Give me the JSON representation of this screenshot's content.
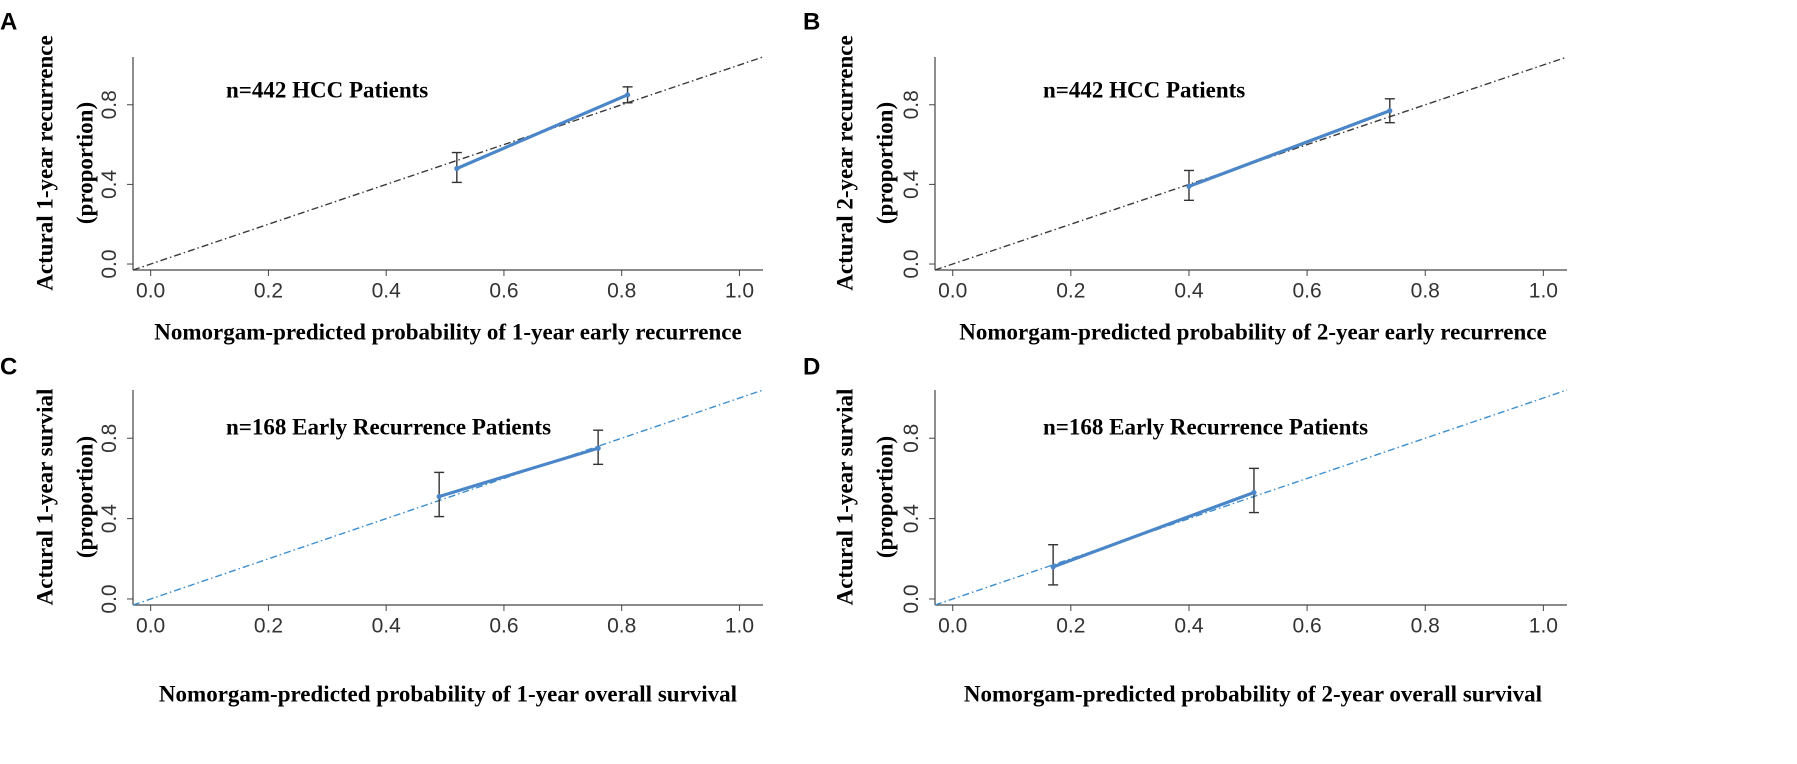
{
  "chart_data": [
    {
      "panel": "A",
      "type": "line",
      "annotation": "n=442 HCC Patients",
      "xlabel": "Nomorgam-predicted probability of 1-year early recurrence",
      "ylabel": [
        "Actural 1-year recurrence",
        "(proportion)"
      ],
      "xticks": [
        "0.0",
        "0.2",
        "0.4",
        "0.6",
        "0.8",
        "1.0"
      ],
      "yticks": [
        "0.0",
        "0.4",
        "0.8"
      ],
      "xlim": [
        -0.03,
        1.04
      ],
      "ylim": [
        -0.03,
        1.04
      ],
      "reference_color": "#3a3a3a",
      "series_color": "#4a86c8",
      "points": [
        {
          "x": 0.52,
          "y": 0.48,
          "lo": 0.41,
          "hi": 0.56
        },
        {
          "x": 0.81,
          "y": 0.85,
          "lo": 0.81,
          "hi": 0.89
        }
      ]
    },
    {
      "panel": "B",
      "type": "line",
      "annotation": "n=442 HCC Patients",
      "xlabel": "Nomorgam-predicted probability of 2-year early recurrence",
      "ylabel": [
        "Actural 2-year recurrence",
        "(proportion)"
      ],
      "xticks": [
        "0.0",
        "0.2",
        "0.4",
        "0.6",
        "0.8",
        "1.0"
      ],
      "yticks": [
        "0.0",
        "0.4",
        "0.8"
      ],
      "xlim": [
        -0.03,
        1.04
      ],
      "ylim": [
        -0.03,
        1.04
      ],
      "reference_color": "#3a3a3a",
      "series_color": "#4a86c8",
      "points": [
        {
          "x": 0.4,
          "y": 0.39,
          "lo": 0.32,
          "hi": 0.47
        },
        {
          "x": 0.74,
          "y": 0.77,
          "lo": 0.71,
          "hi": 0.83
        }
      ]
    },
    {
      "panel": "C",
      "type": "line",
      "annotation": "n=168 Early Recurrence Patients",
      "xlabel": "Nomorgam-predicted probability of 1-year overall survival",
      "ylabel": [
        "Actural 1-year survial",
        "(proportion)"
      ],
      "xticks": [
        "0.0",
        "0.2",
        "0.4",
        "0.6",
        "0.8",
        "1.0"
      ],
      "yticks": [
        "0.0",
        "0.4",
        "0.8"
      ],
      "xlim": [
        -0.03,
        1.04
      ],
      "ylim": [
        -0.03,
        1.04
      ],
      "reference_color": "#3d8fd0",
      "series_color": "#4a86c8",
      "points": [
        {
          "x": 0.49,
          "y": 0.51,
          "lo": 0.41,
          "hi": 0.63
        },
        {
          "x": 0.76,
          "y": 0.75,
          "lo": 0.67,
          "hi": 0.84
        }
      ]
    },
    {
      "panel": "D",
      "type": "line",
      "annotation": "n=168 Early Recurrence Patients",
      "xlabel": "Nomorgam-predicted probability of 2-year overall survival",
      "ylabel": [
        "Actural 1-year survial",
        "(proportion)"
      ],
      "xticks": [
        "0.0",
        "0.2",
        "0.4",
        "0.6",
        "0.8",
        "1.0"
      ],
      "yticks": [
        "0.0",
        "0.4",
        "0.8"
      ],
      "xlim": [
        -0.03,
        1.04
      ],
      "ylim": [
        -0.03,
        1.04
      ],
      "reference_color": "#3d8fd0",
      "series_color": "#4a86c8",
      "points": [
        {
          "x": 0.17,
          "y": 0.16,
          "lo": 0.07,
          "hi": 0.27
        },
        {
          "x": 0.51,
          "y": 0.53,
          "lo": 0.43,
          "hi": 0.65
        }
      ]
    }
  ]
}
